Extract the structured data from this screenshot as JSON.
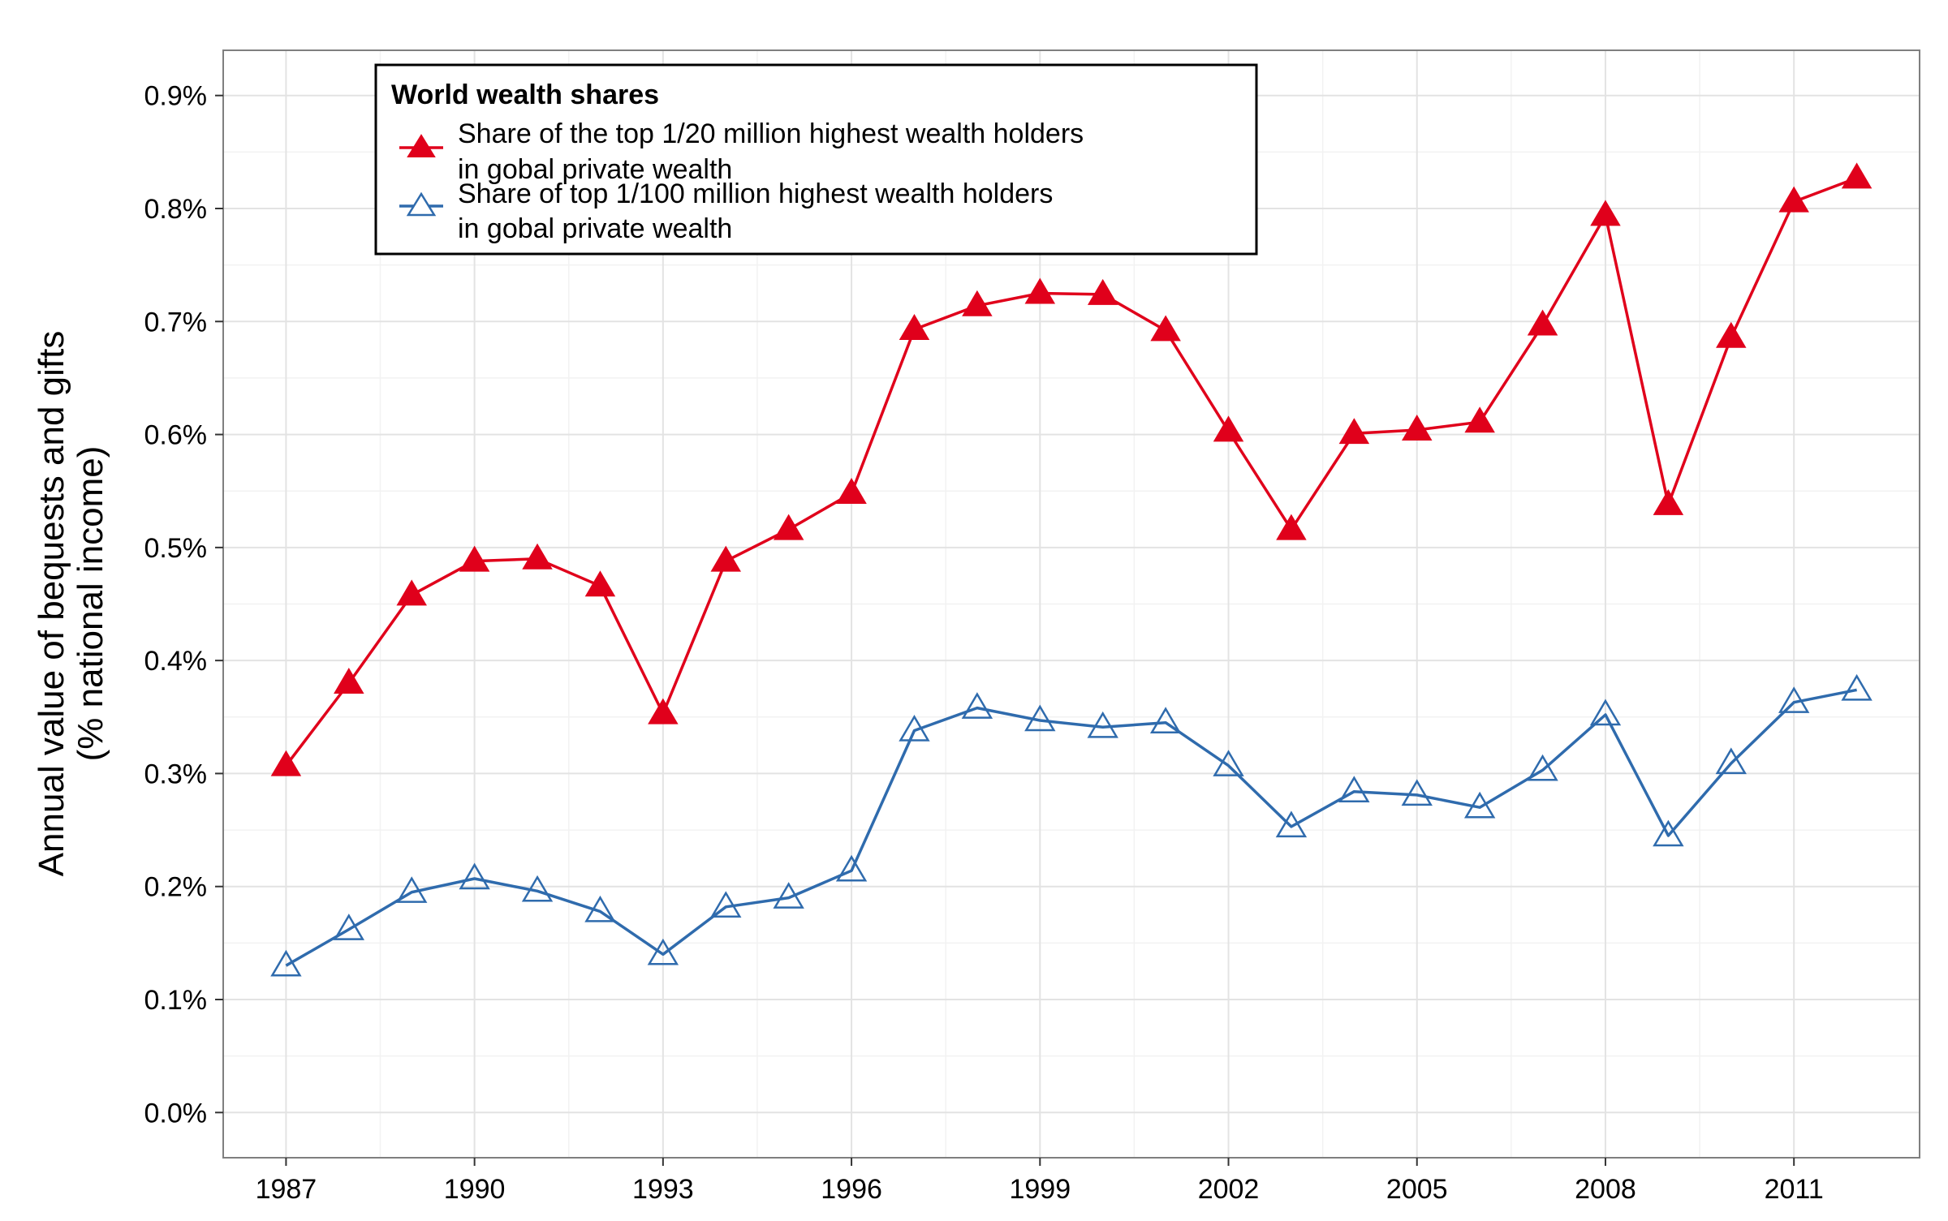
{
  "chart_data": {
    "type": "line",
    "title": "",
    "xlabel": "",
    "ylabel_lines": [
      "Annual value of bequests and gifts",
      "(% national income)"
    ],
    "x": [
      1987,
      1988,
      1989,
      1990,
      1991,
      1992,
      1993,
      1994,
      1995,
      1996,
      1997,
      1998,
      1999,
      2000,
      2001,
      2002,
      2003,
      2004,
      2005,
      2006,
      2007,
      2008,
      2009,
      2010,
      2011,
      2012
    ],
    "xlim": [
      1986,
      2013
    ],
    "ylim": [
      -0.0004,
      0.0094
    ],
    "x_ticks": [
      1987,
      1990,
      1993,
      1996,
      1999,
      2002,
      2005,
      2008,
      2011
    ],
    "y_ticks": [
      0.0,
      0.001,
      0.002,
      0.003,
      0.004,
      0.005,
      0.006,
      0.007,
      0.008,
      0.009
    ],
    "x_tick_labels": [
      "1987",
      "1990",
      "1993",
      "1996",
      "1999",
      "2002",
      "2005",
      "2008",
      "2011"
    ],
    "y_tick_labels": [
      "0.0%",
      "0.1%",
      "0.2%",
      "0.3%",
      "0.4%",
      "0.5%",
      "0.6%",
      "0.7%",
      "0.8%",
      "0.9%"
    ],
    "grid": true,
    "legend": {
      "title": "World wealth shares",
      "placement": "top-left"
    },
    "series": [
      {
        "name_lines": [
          "Share of the top 1/20 million highest wealth holders",
          "in gobal private wealth"
        ],
        "color": "#e0001b",
        "marker": "filled-triangle",
        "values": [
          0.00307,
          0.0038,
          0.00458,
          0.00488,
          0.0049,
          0.00466,
          0.00353,
          0.00488,
          0.00516,
          0.00548,
          0.00693,
          0.00714,
          0.00725,
          0.00724,
          0.00692,
          0.00603,
          0.00516,
          0.00601,
          0.00604,
          0.00611,
          0.00697,
          0.00794,
          0.00538,
          0.00686,
          0.00806,
          0.00827
        ]
      },
      {
        "name_lines": [
          "Share of top 1/100 million highest wealth holders",
          "in gobal private wealth"
        ],
        "color": "#2f6bad",
        "marker": "open-triangle",
        "values": [
          0.0013,
          0.00162,
          0.00195,
          0.00207,
          0.00196,
          0.00178,
          0.0014,
          0.00182,
          0.0019,
          0.00214,
          0.00338,
          0.00358,
          0.00347,
          0.00341,
          0.00345,
          0.00307,
          0.00253,
          0.00284,
          0.00281,
          0.0027,
          0.00303,
          0.00352,
          0.00245,
          0.00309,
          0.00363,
          0.00374
        ]
      }
    ]
  }
}
